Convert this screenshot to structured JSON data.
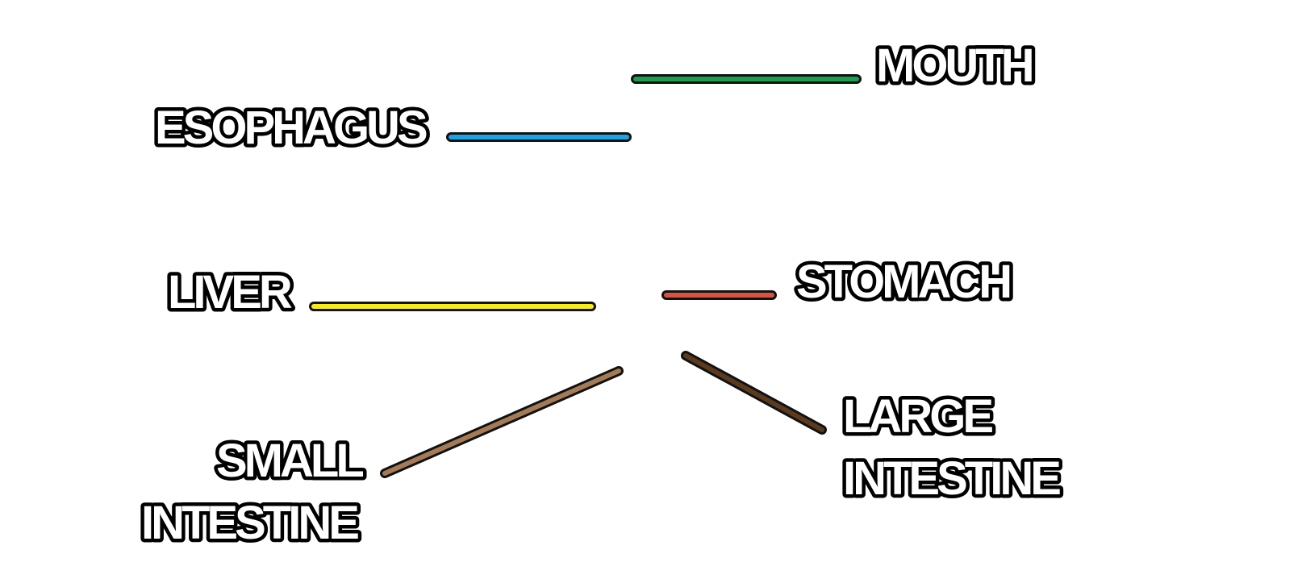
{
  "diagram": {
    "labels": {
      "mouth": "MOUTH",
      "esophagus": "ESOPHAGUS",
      "liver": "LIVER",
      "stomach": "STOMACH",
      "small_intestine_1": "SMALL",
      "small_intestine_2": "INTESTINE",
      "large_intestine_1": "LARGE",
      "large_intestine_2": "INTESTINE"
    },
    "colors": {
      "mouth": "#1e9c4f",
      "esophagus": "#1aa4e6",
      "liver": "#f7ec1a",
      "stomach": "#d9533e",
      "small_intestine": "#a57b56",
      "large_intestine": "#5b3a1e"
    }
  }
}
